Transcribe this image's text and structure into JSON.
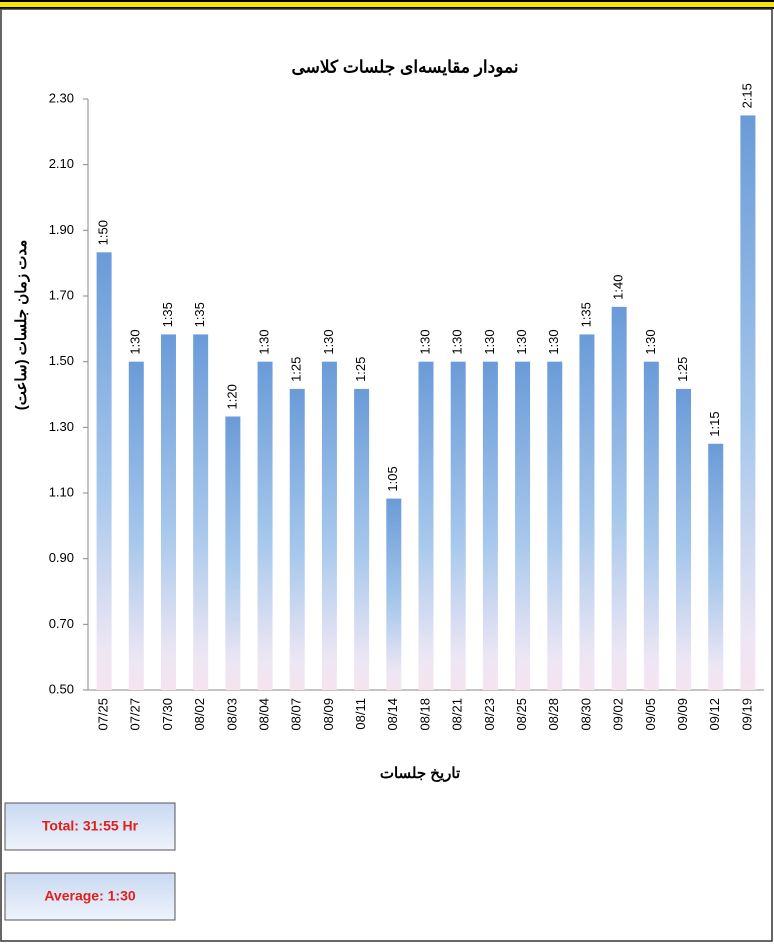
{
  "chart_data": {
    "type": "bar",
    "title": "نمودار مقایسه‌ای جلسات کلاسی",
    "x_label": "تاریخ جلسات",
    "y_label": "مدت زمان جلسات (ساعت)",
    "categories": [
      "07/25",
      "07/27",
      "07/30",
      "08/02",
      "08/03",
      "08/04",
      "08/07",
      "08/09",
      "08/11",
      "08/14",
      "08/18",
      "08/21",
      "08/23",
      "08/25",
      "08/28",
      "08/30",
      "09/02",
      "09/05",
      "09/09",
      "09/12",
      "09/19"
    ],
    "values": [
      1.833,
      1.5,
      1.583,
      1.583,
      1.333,
      1.5,
      1.417,
      1.5,
      1.417,
      1.083,
      1.5,
      1.5,
      1.5,
      1.5,
      1.5,
      1.583,
      1.667,
      1.5,
      1.417,
      1.25,
      2.25
    ],
    "value_labels": [
      "1:50",
      "1:30",
      "1:35",
      "1:35",
      "1:20",
      "1:30",
      "1:25",
      "1:30",
      "1:25",
      "1:05",
      "1:30",
      "1:30",
      "1:30",
      "1:30",
      "1:30",
      "1:35",
      "1:40",
      "1:30",
      "1:25",
      "1:15",
      "2:15"
    ],
    "color": "#6a9bd8",
    "ylim": [
      0.5,
      2.3
    ],
    "yticks": [
      {
        "value": 0.5,
        "label": "0.50"
      },
      {
        "value": 0.7,
        "label": "0.70"
      },
      {
        "value": 0.9,
        "label": "0.90"
      },
      {
        "value": 1.1,
        "label": "1.10"
      },
      {
        "value": 1.3,
        "label": "1.30"
      },
      {
        "value": 1.5,
        "label": "1.50"
      },
      {
        "value": 1.7,
        "label": "1.70"
      },
      {
        "value": 1.9,
        "label": "1.90"
      },
      {
        "value": 2.1,
        "label": "2.10"
      },
      {
        "value": 2.3,
        "label": "2.30"
      }
    ],
    "grid": false,
    "annotations": [
      "Total: 31:55 Hr",
      "Average: 1:30"
    ]
  }
}
